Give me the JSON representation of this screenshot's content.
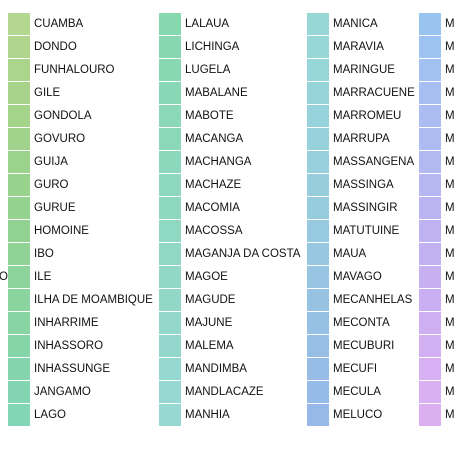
{
  "chart_data": {
    "type": "legend",
    "title": "",
    "columns": [
      {
        "labels": [
          "CUAMBA",
          "DONDO",
          "FUNHALOURO",
          "GILE",
          "GONDOLA",
          "GOVURO",
          "GUIJA",
          "GURO",
          "GURUE",
          "HOMOINE",
          "IBO",
          "ILE",
          "ILHA DE MOAMBIQUE",
          "INHARRIME",
          "INHASSORO",
          "INHASSUNGE",
          "JANGAMO",
          "LAGO"
        ],
        "colors": [
          "#b3d78f",
          "#b0d68e",
          "#acd58c",
          "#a7d48a",
          "#a4d489",
          "#a0d38b",
          "#9cd38c",
          "#98d38e",
          "#94d290",
          "#91d293",
          "#8fd397",
          "#8cd49b",
          "#8ad49f",
          "#88d4a3",
          "#86d5a8",
          "#84d5ad",
          "#83d5b2",
          "#82d6b6"
        ]
      },
      {
        "labels": [
          "LALAUA",
          "LICHINGA",
          "LUGELA",
          "MABALANE",
          "MABOTE",
          "MACANGA",
          "MACHANGA",
          "MACHAZE",
          "MACOMIA",
          "MACOSSA",
          "MAGANJA DA COSTA",
          "MAGOE",
          "MAGUDE",
          "MAJUNE",
          "MALEMA",
          "MANDIMBA",
          "MANDLACAZE",
          "MANHIA"
        ],
        "colors": [
          "#86d8ae",
          "#87d8b0",
          "#88d8b2",
          "#89d8b5",
          "#8ad8b7",
          "#8bd8b9",
          "#8cd8bc",
          "#8dd8be",
          "#8ed8c0",
          "#8fd8c2",
          "#90d8c4",
          "#91d8c7",
          "#92d8c9",
          "#93d8cb",
          "#94d8cd",
          "#95d8cf",
          "#96d8d1",
          "#97d8d3"
        ]
      },
      {
        "labels": [
          "MANICA",
          "MARAVIA",
          "MARINGUE",
          "MARRACUENE",
          "MARROMEU",
          "MARRUPA",
          "MASSANGENA",
          "MASSINGA",
          "MASSINGIR",
          "MATUTUINE",
          "MAUA",
          "MAVAGO",
          "MECANHELAS",
          "MECONTA",
          "MECUBURI",
          "MECUFI",
          "MECULA",
          "MELUCO"
        ],
        "colors": [
          "#97d8d6",
          "#97d7d7",
          "#97d6d8",
          "#97d4d9",
          "#97d3da",
          "#97d1db",
          "#97cfdc",
          "#97cddd",
          "#97cbde",
          "#97c9e0",
          "#97c7e1",
          "#97c5e2",
          "#97c3e3",
          "#97c1e4",
          "#97bfe6",
          "#97bde7",
          "#97bbe8",
          "#97b9e9"
        ]
      },
      {
        "labels": [
          "M",
          "M",
          "M",
          "M",
          "M",
          "M",
          "M",
          "M",
          "M",
          "M",
          "M",
          "M",
          "M",
          "M",
          "M",
          "M",
          "M",
          "M"
        ],
        "colors": [
          "#9ac4f0",
          "#9ec2f1",
          "#a2c0f2",
          "#a6bef2",
          "#aabcf2",
          "#aebaf2",
          "#b2b8f2",
          "#b6b6f2",
          "#bab4f2",
          "#beb2f2",
          "#c2b1f2",
          "#c6b0f2",
          "#cab0f2",
          "#ceb0f2",
          "#d2b0f2",
          "#d6b0f2",
          "#d9b0f1",
          "#dcb0f0"
        ]
      }
    ],
    "stub_label": "O"
  }
}
